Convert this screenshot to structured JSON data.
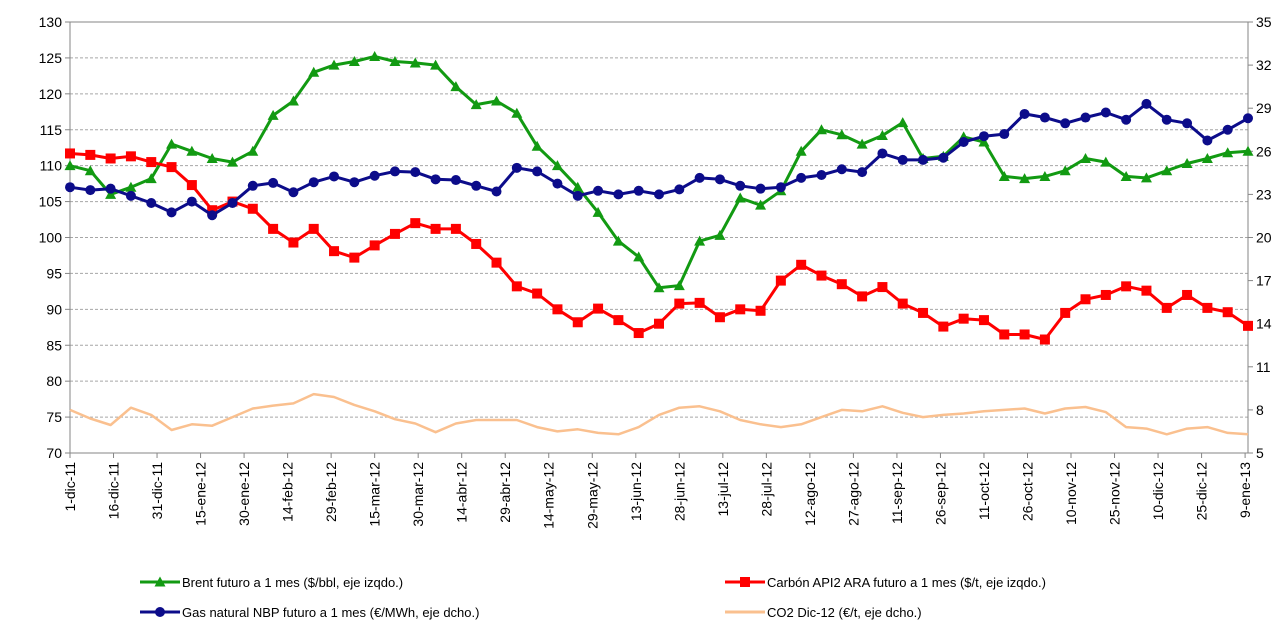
{
  "chart_data": {
    "type": "line",
    "x": [
      "2011-12-01",
      "2011-12-08",
      "2011-12-15",
      "2011-12-22",
      "2011-12-29",
      "2012-01-05",
      "2012-01-12",
      "2012-01-19",
      "2012-01-26",
      "2012-02-02",
      "2012-02-09",
      "2012-02-16",
      "2012-02-23",
      "2012-03-01",
      "2012-03-08",
      "2012-03-15",
      "2012-03-22",
      "2012-03-29",
      "2012-04-05",
      "2012-04-12",
      "2012-04-19",
      "2012-04-26",
      "2012-05-03",
      "2012-05-10",
      "2012-05-17",
      "2012-05-24",
      "2012-05-31",
      "2012-06-07",
      "2012-06-14",
      "2012-06-21",
      "2012-06-28",
      "2012-07-05",
      "2012-07-12",
      "2012-07-19",
      "2012-07-26",
      "2012-08-02",
      "2012-08-09",
      "2012-08-16",
      "2012-08-23",
      "2012-08-30",
      "2012-09-06",
      "2012-09-13",
      "2012-09-20",
      "2012-09-27",
      "2012-10-04",
      "2012-10-11",
      "2012-10-18",
      "2012-10-25",
      "2012-11-01",
      "2012-11-08",
      "2012-11-15",
      "2012-11-22",
      "2012-11-29",
      "2012-12-06",
      "2012-12-13",
      "2012-12-20",
      "2012-12-27",
      "2013-01-03",
      "2013-01-10"
    ],
    "xlim": [
      "2011-12-01",
      "2013-01-10"
    ],
    "xticks": [
      {
        "value": "2011-12-01",
        "label": "1-dic-11"
      },
      {
        "value": "2011-12-16",
        "label": "16-dic-11"
      },
      {
        "value": "2011-12-31",
        "label": "31-dic-11"
      },
      {
        "value": "2012-01-15",
        "label": "15-ene-12"
      },
      {
        "value": "2012-01-30",
        "label": "30-ene-12"
      },
      {
        "value": "2012-02-14",
        "label": "14-feb-12"
      },
      {
        "value": "2012-02-29",
        "label": "29-feb-12"
      },
      {
        "value": "2012-03-15",
        "label": "15-mar-12"
      },
      {
        "value": "2012-03-30",
        "label": "30-mar-12"
      },
      {
        "value": "2012-04-14",
        "label": "14-abr-12"
      },
      {
        "value": "2012-04-29",
        "label": "29-abr-12"
      },
      {
        "value": "2012-05-14",
        "label": "14-may-12"
      },
      {
        "value": "2012-05-29",
        "label": "29-may-12"
      },
      {
        "value": "2012-06-13",
        "label": "13-jun-12"
      },
      {
        "value": "2012-06-28",
        "label": "28-jun-12"
      },
      {
        "value": "2012-07-13",
        "label": "13-jul-12"
      },
      {
        "value": "2012-07-28",
        "label": "28-jul-12"
      },
      {
        "value": "2012-08-12",
        "label": "12-ago-12"
      },
      {
        "value": "2012-08-27",
        "label": "27-ago-12"
      },
      {
        "value": "2012-09-11",
        "label": "11-sep-12"
      },
      {
        "value": "2012-09-26",
        "label": "26-sep-12"
      },
      {
        "value": "2012-10-11",
        "label": "11-oct-12"
      },
      {
        "value": "2012-10-26",
        "label": "26-oct-12"
      },
      {
        "value": "2012-11-10",
        "label": "10-nov-12"
      },
      {
        "value": "2012-11-25",
        "label": "25-nov-12"
      },
      {
        "value": "2012-12-10",
        "label": "10-dic-12"
      },
      {
        "value": "2012-12-25",
        "label": "25-dic-12"
      },
      {
        "value": "2013-01-09",
        "label": "9-ene-13"
      }
    ],
    "ylim": [
      70,
      130
    ],
    "yticks": [
      70,
      75,
      80,
      85,
      90,
      95,
      100,
      105,
      110,
      115,
      120,
      125,
      130
    ],
    "y2lim": [
      5,
      35
    ],
    "y2ticks": [
      5,
      8,
      11,
      14,
      17,
      20,
      23,
      26,
      29,
      32,
      35
    ],
    "grid": true,
    "legend": "bottom",
    "series": [
      {
        "name": "Brent futuro a 1 mes ($/bbl, eje izqdo.)",
        "color": "#129a12",
        "marker": "triangle",
        "values": [
          110,
          109.3,
          106,
          107,
          108.2,
          113,
          112,
          111,
          110.5,
          112,
          117,
          119,
          123,
          124,
          124.5,
          125.2,
          124.5,
          124.3,
          124,
          121,
          118.5,
          119,
          117.3,
          112.7,
          110,
          107,
          103.5,
          99.5,
          97.3,
          93,
          93.3,
          99.5,
          100.3,
          105.5,
          104.5,
          106.5,
          112,
          115,
          114.3,
          113,
          114.2,
          116,
          111,
          111.3,
          114,
          113.3,
          108.5,
          108.2,
          108.5,
          109.3,
          111,
          110.5,
          108.5,
          108.3,
          109.3,
          110.3,
          111,
          111.8,
          112
        ]
      },
      {
        "name": "Carbón API2 ARA  futuro a 1 mes ($/t, eje izqdo.)",
        "color": "#ff0000",
        "marker": "square",
        "values": [
          111.7,
          111.5,
          111,
          111.3,
          110.5,
          109.8,
          107.3,
          103.8,
          105,
          104,
          101.2,
          99.3,
          101.2,
          98.1,
          97.2,
          98.9,
          100.5,
          102,
          101.2,
          101.2,
          99.1,
          96.5,
          93.2,
          92.2,
          90,
          88.2,
          90.1,
          88.5,
          86.7,
          88,
          90.8,
          90.9,
          88.9,
          90,
          89.8,
          94,
          96.2,
          94.7,
          93.5,
          91.8,
          93.1,
          90.8,
          89.5,
          87.6,
          88.7,
          88.5,
          86.5,
          86.5,
          85.8,
          89.5,
          91.4,
          92,
          93.2,
          92.6,
          90.2,
          92,
          90.2,
          89.6,
          87.7
        ]
      },
      {
        "name": "Gas natural NBP futuro a 1 mes (€/MWh, eje dcho.)",
        "color": "#0c0c8a",
        "marker": "circle",
        "axis": "y2",
        "values": [
          23.5,
          23.3,
          23.4,
          22.9,
          22.4,
          21.75,
          22.5,
          21.55,
          22.4,
          23.6,
          23.8,
          23.15,
          23.85,
          24.25,
          23.85,
          24.3,
          24.6,
          24.55,
          24.05,
          24,
          23.6,
          23.2,
          24.85,
          24.6,
          23.75,
          22.9,
          23.25,
          23,
          23.25,
          23,
          23.35,
          24.15,
          24.05,
          23.6,
          23.4,
          23.5,
          24.15,
          24.35,
          24.75,
          24.55,
          25.85,
          25.4,
          25.4,
          25.55,
          26.65,
          27.05,
          27.2,
          28.6,
          28.35,
          27.95,
          28.35,
          28.7,
          28.2,
          29.3,
          28.2,
          27.95,
          26.75,
          27.5,
          28.3
        ]
      },
      {
        "name": "CO2 Dic-12 (€/t, eje dcho.)",
        "color": "#fac08f",
        "marker": "none",
        "axis": "y2",
        "values": [
          8,
          7.4,
          6.95,
          8.15,
          7.65,
          6.6,
          7,
          6.9,
          7.5,
          8.1,
          8.3,
          8.45,
          9.1,
          8.9,
          8.35,
          7.9,
          7.35,
          7.05,
          6.45,
          7.05,
          7.3,
          7.3,
          7.3,
          6.8,
          6.5,
          6.65,
          6.4,
          6.3,
          6.8,
          7.65,
          8.15,
          8.25,
          7.9,
          7.3,
          7,
          6.8,
          7,
          7.5,
          8,
          7.9,
          8.25,
          7.8,
          7.5,
          7.65,
          7.75,
          7.9,
          8,
          8.1,
          7.75,
          8.1,
          8.2,
          7.85,
          6.8,
          6.7,
          6.3,
          6.7,
          6.8,
          6.4,
          6.3
        ]
      }
    ]
  }
}
